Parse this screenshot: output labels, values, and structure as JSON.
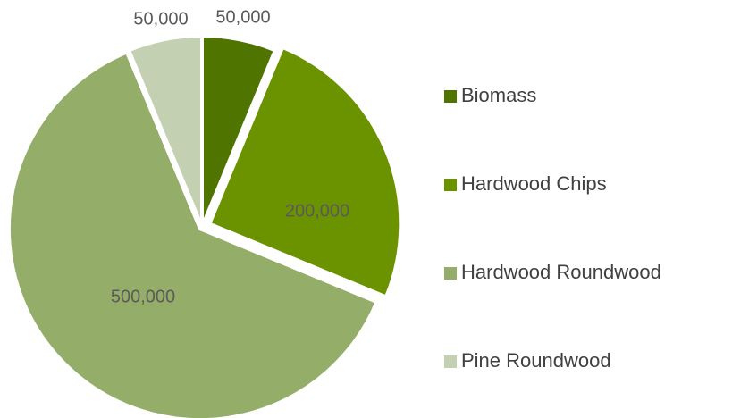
{
  "chart_data": {
    "type": "pie",
    "categories": [
      "Biomass",
      "Hardwood Chips",
      "Hardwood Roundwood",
      "Pine Roundwood"
    ],
    "values": [
      50000,
      200000,
      500000,
      50000
    ],
    "value_labels": [
      "50,000",
      "200,000",
      "500,000",
      "50,000"
    ],
    "colors": [
      "#4f7500",
      "#6b9300",
      "#94ad69",
      "#c3d0b1"
    ],
    "legend": "right"
  }
}
